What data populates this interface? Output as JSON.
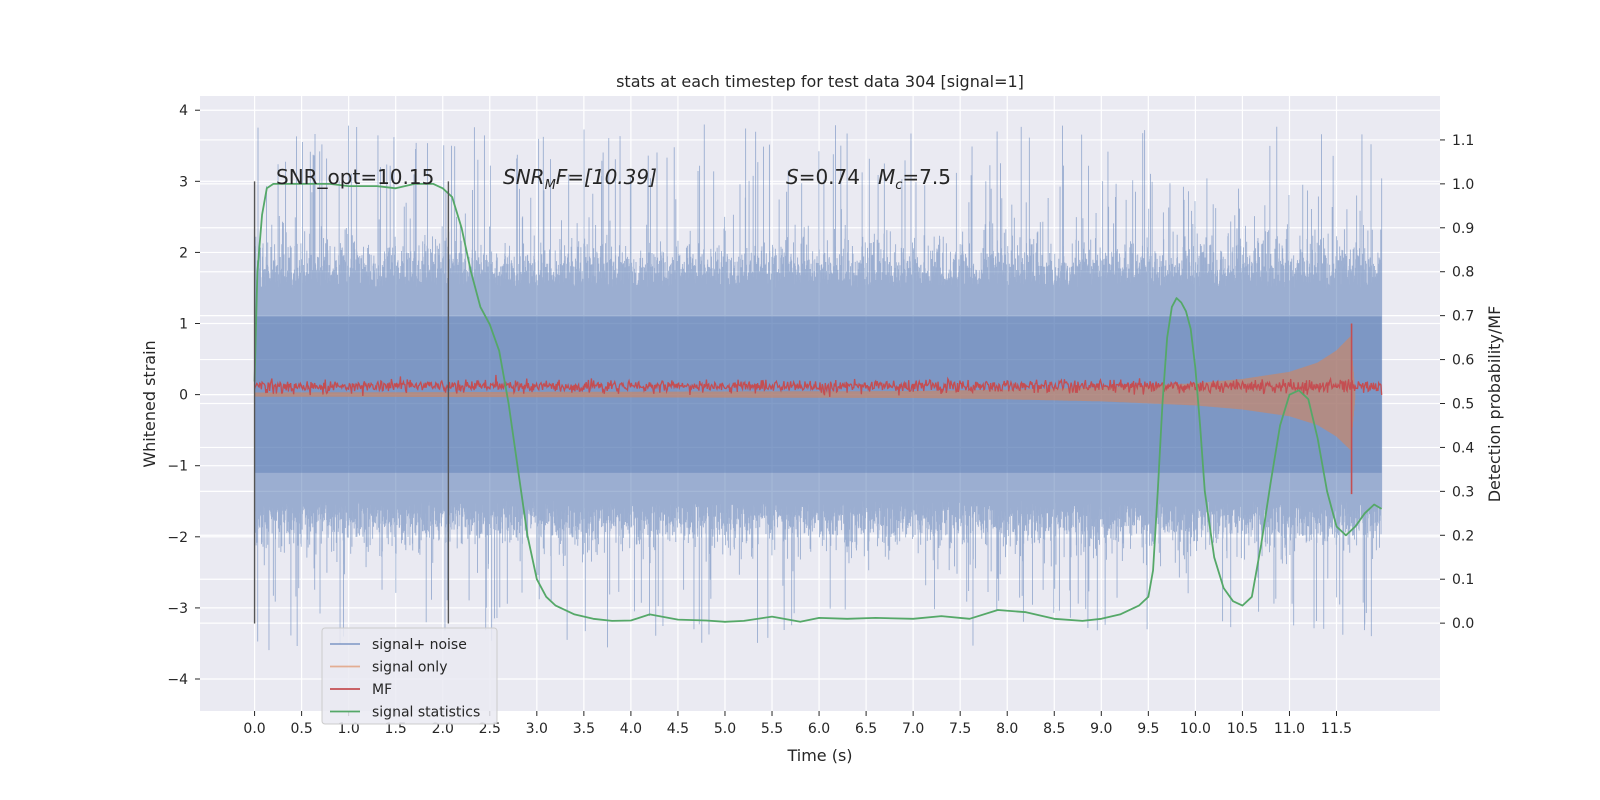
{
  "chart_data": {
    "type": "line",
    "title": "stats at each timestep for test data 304 [signal=1]",
    "xlabel": "Time (s)",
    "ylabel_left": "Whitened strain",
    "ylabel_right": "Detection probability/MF",
    "xlim": [
      -0.58,
      12.6
    ],
    "ylim_left": [
      -4.45,
      4.2
    ],
    "ylim_right": [
      -0.2,
      1.2
    ],
    "x_ticks": [
      0.0,
      0.5,
      1.0,
      1.5,
      2.0,
      2.5,
      3.0,
      3.5,
      4.0,
      4.5,
      5.0,
      5.5,
      6.0,
      6.5,
      7.0,
      7.5,
      8.0,
      8.5,
      9.0,
      9.5,
      10.0,
      10.5,
      11.0,
      11.5
    ],
    "x_tick_labels": [
      "0.0",
      "0.5",
      "1.0",
      "1.5",
      "2.0",
      "2.5",
      "3.0",
      "3.5",
      "4.0",
      "4.5",
      "5.0",
      "5.5",
      "6.0",
      "6.5",
      "7.0",
      "7.5",
      "8.0",
      "8.5",
      "9.0",
      "9.5",
      "10.0",
      "10.5",
      "11.0",
      "11.5"
    ],
    "y_left_ticks": [
      -4,
      -3,
      -2,
      -1,
      0,
      1,
      2,
      3,
      4
    ],
    "y_left_tick_labels": [
      "−4",
      "−3",
      "−2",
      "−1",
      "0",
      "1",
      "2",
      "3",
      "4"
    ],
    "y_right_ticks": [
      0.0,
      0.1,
      0.2,
      0.3,
      0.4,
      0.5,
      0.6,
      0.7,
      0.8,
      0.9,
      1.0,
      1.1
    ],
    "y_right_tick_labels": [
      "0.0",
      "0.1",
      "0.2",
      "0.3",
      "0.4",
      "0.5",
      "0.6",
      "0.7",
      "0.8",
      "0.9",
      "1.0",
      "1.1"
    ],
    "grid": true,
    "legend_position": "bottom-left",
    "x_range_data": [
      0.0,
      11.98
    ],
    "annotations": {
      "snr_opt": "SNR_opt=10.15",
      "snr_mf_prefix": "SNR",
      "snr_mf_sub": "M",
      "snr_mf_suffix": "F=[10.39]",
      "s_label": "S",
      "s_value": "=0.74",
      "mc_label": "M",
      "mc_sub": "c",
      "mc_value": "=7.5"
    },
    "vertical_markers": [
      {
        "x": 0.0,
        "y_range": [
          -3.22,
          3.0
        ]
      },
      {
        "x": 2.06,
        "y_range": [
          -3.22,
          3.0
        ]
      }
    ],
    "series": [
      {
        "name": "signal+ noise",
        "color": "#4c72b0",
        "axis": "left",
        "kind": "noise",
        "amplitude_core": 1.75,
        "amplitude_peak": 3.8
      },
      {
        "name": "signal only",
        "color": "#dd8452",
        "axis": "left",
        "kind": "chirp",
        "envelope": {
          "x": [
            0.0,
            7.0,
            8.0,
            9.0,
            10.0,
            10.5,
            11.0,
            11.3,
            11.5,
            11.65,
            11.7
          ],
          "y": [
            0.03,
            0.05,
            0.07,
            0.1,
            0.16,
            0.22,
            0.32,
            0.45,
            0.62,
            0.82,
            0.0
          ]
        }
      },
      {
        "name": "MF",
        "color": "#c44e52",
        "axis": "left",
        "kind": "noise",
        "center": 0.12,
        "amplitude": 0.12,
        "spike": {
          "x": 11.66,
          "top": 1.0,
          "bottom": -1.4
        }
      },
      {
        "name": "signal statistics",
        "color": "#55a868",
        "axis": "right",
        "kind": "line",
        "x": [
          0.0,
          0.03,
          0.08,
          0.13,
          0.2,
          0.3,
          0.5,
          0.8,
          1.0,
          1.3,
          1.5,
          1.7,
          1.9,
          2.0,
          2.1,
          2.2,
          2.3,
          2.4,
          2.5,
          2.6,
          2.7,
          2.8,
          2.9,
          3.0,
          3.1,
          3.2,
          3.4,
          3.6,
          3.8,
          4.0,
          4.2,
          4.5,
          4.8,
          5.0,
          5.2,
          5.5,
          5.8,
          6.0,
          6.3,
          6.6,
          7.0,
          7.3,
          7.6,
          7.9,
          8.2,
          8.5,
          8.8,
          9.0,
          9.2,
          9.4,
          9.5,
          9.55,
          9.6,
          9.65,
          9.7,
          9.75,
          9.8,
          9.85,
          9.9,
          9.95,
          10.0,
          10.05,
          10.1,
          10.2,
          10.3,
          10.4,
          10.5,
          10.6,
          10.7,
          10.8,
          10.9,
          11.0,
          11.1,
          11.2,
          11.3,
          11.4,
          11.5,
          11.6,
          11.7,
          11.8,
          11.9,
          11.98
        ],
        "y": [
          0.55,
          0.8,
          0.93,
          0.99,
          1.0,
          1.0,
          1.0,
          1.0,
          0.995,
          0.995,
          0.99,
          1.0,
          1.0,
          0.99,
          0.97,
          0.9,
          0.8,
          0.72,
          0.68,
          0.62,
          0.5,
          0.35,
          0.2,
          0.1,
          0.06,
          0.04,
          0.02,
          0.01,
          0.005,
          0.006,
          0.02,
          0.008,
          0.006,
          0.003,
          0.005,
          0.015,
          0.003,
          0.012,
          0.01,
          0.012,
          0.01,
          0.016,
          0.01,
          0.03,
          0.025,
          0.01,
          0.005,
          0.01,
          0.02,
          0.04,
          0.06,
          0.12,
          0.3,
          0.5,
          0.65,
          0.72,
          0.74,
          0.73,
          0.71,
          0.67,
          0.58,
          0.45,
          0.3,
          0.15,
          0.08,
          0.05,
          0.04,
          0.06,
          0.18,
          0.32,
          0.45,
          0.52,
          0.53,
          0.51,
          0.42,
          0.3,
          0.22,
          0.2,
          0.22,
          0.25,
          0.27,
          0.26
        ]
      }
    ]
  }
}
